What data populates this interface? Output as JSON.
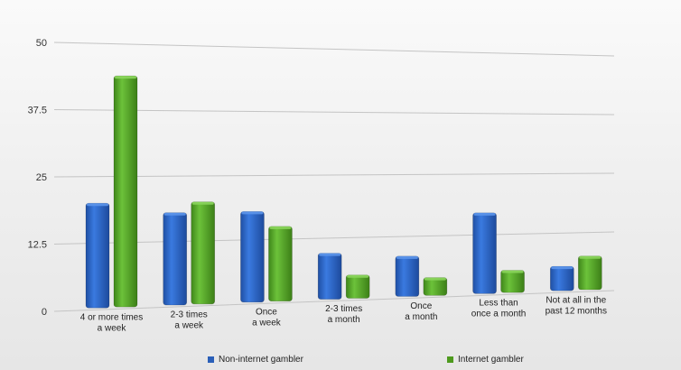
{
  "chart_data": {
    "type": "bar",
    "title": "",
    "xlabel": "",
    "ylabel": "",
    "ylim": [
      0,
      50
    ],
    "yticks": [
      "0",
      "12.5",
      "25",
      "37.5",
      "50"
    ],
    "categories": [
      [
        "4 or more times",
        "a week"
      ],
      [
        "2-3 times",
        "a week"
      ],
      [
        "Once",
        "a week"
      ],
      [
        "2-3 times",
        "a month"
      ],
      [
        "Once",
        "a month"
      ],
      [
        "Less than",
        "once a month"
      ],
      [
        "Not at all in the",
        "past 12 months"
      ]
    ],
    "series": [
      {
        "name": "Non-internet gambler",
        "color": "#2a5fb8",
        "values": [
          20,
          18,
          18,
          9.5,
          8.5,
          17,
          5.5
        ]
      },
      {
        "name": "Internet gambler",
        "color": "#4e9a1e",
        "values": [
          44,
          20,
          15,
          5,
          4,
          5,
          7.5
        ]
      }
    ],
    "grid": true,
    "legend_position": "bottom"
  }
}
